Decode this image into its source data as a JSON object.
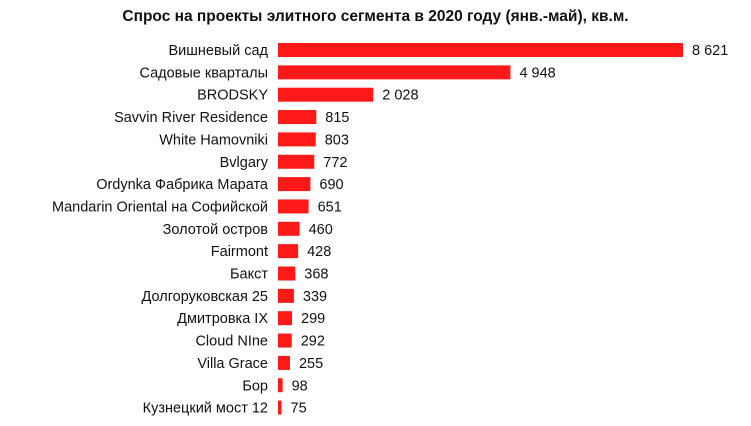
{
  "chart_data": {
    "type": "bar",
    "orientation": "horizontal",
    "title": "Спрос на проекты элитного сегмента в 2020 году (янв.-май), кв.м.",
    "xlabel": "",
    "ylabel": "",
    "categories": [
      "Вишневый сад",
      "Садовые кварталы",
      "BRODSKY",
      "Savvin River Residence",
      "White Hamovniki",
      "Bvlgary",
      "Ordynka Фабрика Марата",
      "Mandarin Oriental на Софийской",
      "Золотой остров",
      "Fairmont",
      "Бакст",
      "Долгоруковская 25",
      "Дмитровка IX",
      "Cloud NIne",
      "Villa Grace",
      "Бор",
      "Кузнецкий мост 12"
    ],
    "values": [
      8621,
      4948,
      2028,
      815,
      803,
      772,
      690,
      651,
      460,
      428,
      368,
      339,
      299,
      292,
      255,
      98,
      75
    ],
    "value_labels": [
      "8 621",
      "4 948",
      "2 028",
      "815",
      "803",
      "772",
      "690",
      "651",
      "460",
      "428",
      "368",
      "339",
      "299",
      "292",
      "255",
      "98",
      "75"
    ],
    "xlim": [
      0,
      8621
    ],
    "grid": false,
    "legend": false,
    "bar_color": "#ff1a1a"
  }
}
